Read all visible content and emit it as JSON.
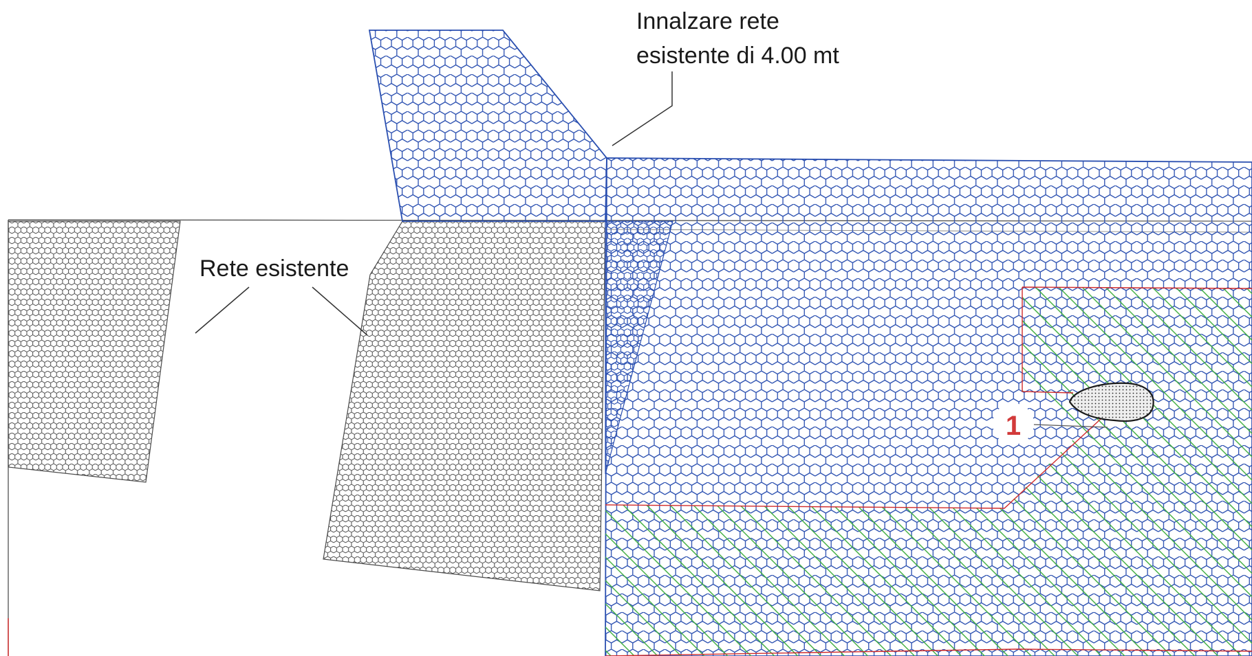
{
  "annotations": {
    "raise_net_line1": "Innalzare rete",
    "raise_net_line2": "esistente di 4.00 mt",
    "existing_net": "Rete esistente",
    "marker_number": "1"
  },
  "colors": {
    "existing_mesh": "#4a4a4a",
    "new_mesh": "#2a4fb0",
    "hatch": "#3fae3f",
    "area_border": "#d02a2a",
    "marker_text": "#d23a3a",
    "leader": "#333333",
    "rock_fill": "#eeeeee"
  }
}
